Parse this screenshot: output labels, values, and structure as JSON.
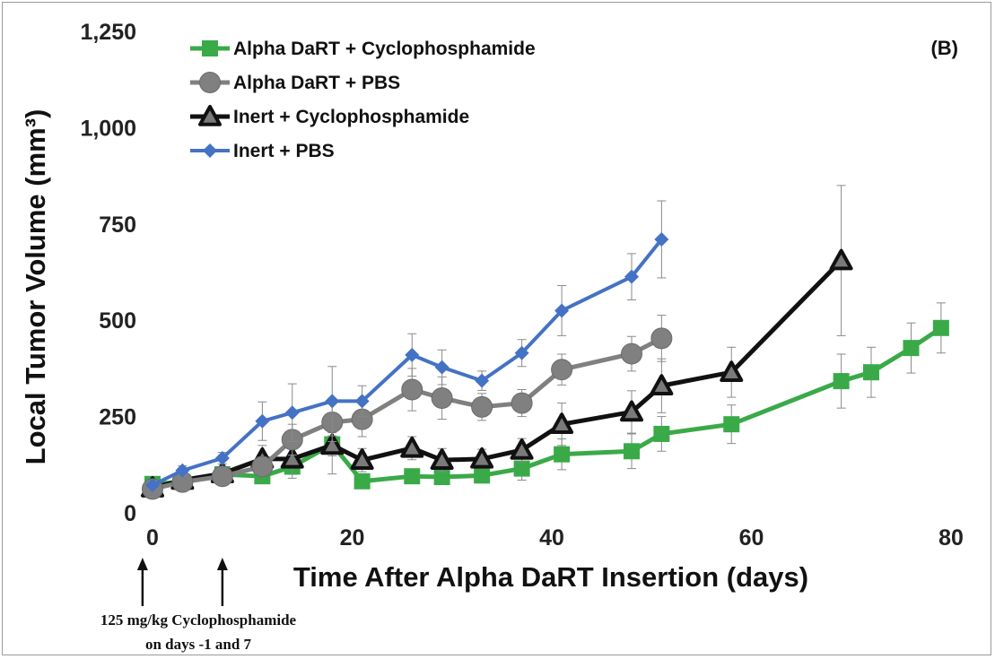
{
  "chart_data": {
    "type": "line",
    "title": "",
    "panel_label": "(B)",
    "xlabel": "Time After Alpha DaRT Insertion (days)",
    "ylabel": "Local Tumor Volume (mm³)",
    "xlim": [
      0,
      80
    ],
    "ylim": [
      0,
      1250
    ],
    "x_ticks": [
      0,
      20,
      40,
      60,
      80
    ],
    "x_tick_labels": [
      "0",
      "20",
      "40",
      "60",
      "80"
    ],
    "y_ticks": [
      0,
      250,
      500,
      750,
      1000,
      1250
    ],
    "y_tick_labels": [
      "0",
      "250",
      "500",
      "750",
      "1,000",
      "1,250"
    ],
    "grid": false,
    "legend_position": "top-left",
    "series": [
      {
        "name": "Alpha DaRT + Cyclophosphamide",
        "color": "#3aaa48",
        "marker": "square",
        "x": [
          0,
          3,
          7,
          11,
          14,
          18,
          21,
          26,
          29,
          33,
          37,
          41,
          48,
          51,
          58,
          69,
          72,
          76,
          79
        ],
        "y": [
          75,
          80,
          100,
          95,
          120,
          178,
          82,
          95,
          93,
          97,
          115,
          152,
          160,
          205,
          230,
          342,
          365,
          428,
          480
        ],
        "err": [
          10,
          10,
          15,
          15,
          20,
          30,
          15,
          15,
          15,
          15,
          30,
          40,
          45,
          45,
          50,
          70,
          65,
          65,
          65
        ]
      },
      {
        "name": "Alpha DaRT + PBS",
        "color": "#808080",
        "marker": "circle",
        "x": [
          0,
          3,
          7,
          11,
          14,
          18,
          21,
          26,
          29,
          33,
          37,
          41,
          48,
          51
        ],
        "y": [
          62,
          80,
          95,
          120,
          190,
          235,
          243,
          320,
          298,
          275,
          285,
          372,
          413,
          453
        ],
        "err": [
          10,
          10,
          20,
          25,
          40,
          50,
          45,
          55,
          55,
          35,
          35,
          40,
          45,
          60
        ]
      },
      {
        "name": "Inert + Cyclophosphamide",
        "color": "#111111",
        "marker": "triangle",
        "x": [
          0,
          3,
          7,
          11,
          14,
          18,
          21,
          26,
          29,
          33,
          37,
          41,
          48,
          51,
          58,
          69
        ],
        "y": [
          65,
          85,
          102,
          140,
          140,
          176,
          137,
          168,
          137,
          140,
          163,
          230,
          262,
          330,
          365,
          655
        ],
        "err": [
          10,
          10,
          15,
          35,
          50,
          75,
          30,
          30,
          30,
          25,
          30,
          55,
          55,
          70,
          65,
          195
        ]
      },
      {
        "name": "Inert + PBS",
        "color": "#4472c4",
        "marker": "diamond",
        "x": [
          0,
          3,
          7,
          11,
          14,
          18,
          21,
          26,
          29,
          33,
          37,
          41,
          48,
          51
        ],
        "y": [
          72,
          110,
          142,
          238,
          260,
          290,
          290,
          410,
          378,
          343,
          415,
          525,
          613,
          710
        ],
        "err": [
          10,
          12,
          15,
          50,
          75,
          90,
          40,
          55,
          45,
          25,
          35,
          65,
          60,
          100
        ]
      }
    ],
    "annotations": [
      {
        "text_line1": "125 mg/kg Cyclophosphamide",
        "text_line2": "on days -1 and 7",
        "arrow_days": [
          -1,
          7
        ]
      }
    ]
  }
}
